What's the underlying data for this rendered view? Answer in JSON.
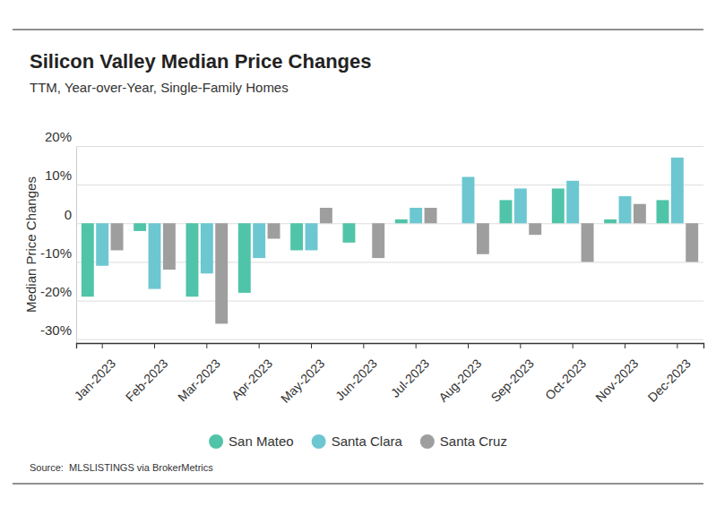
{
  "chart_data": {
    "type": "bar",
    "title": "Silicon Valley Median Price Changes",
    "subtitle": "TTM, Year-over-Year, Single-Family Homes",
    "ylabel": "Median Price Changes",
    "source": "Source:  MLSLISTINGS via BrokerMetrics",
    "categories": [
      "Jan-2023",
      "Feb-2023",
      "Mar-2023",
      "Apr-2023",
      "May-2023",
      "Jun-2023",
      "Jul-2023",
      "Aug-2023",
      "Sep-2023",
      "Oct-2023",
      "Nov-2023",
      "Dec-2023"
    ],
    "series": [
      {
        "name": "San Mateo",
        "color": "#50c4a8",
        "values": [
          -19,
          -2,
          -19,
          -18,
          -7,
          -5,
          1,
          0,
          6,
          9,
          1,
          6
        ]
      },
      {
        "name": "Santa Clara",
        "color": "#6cc7d1",
        "values": [
          -11,
          -17,
          -13,
          -9,
          -7,
          0,
          4,
          12,
          9,
          11,
          7,
          17
        ]
      },
      {
        "name": "Santa Cruz",
        "color": "#9e9e9e",
        "values": [
          -7,
          -12,
          -26,
          -4,
          4,
          -9,
          4,
          -8,
          -3,
          -10,
          5,
          -10
        ]
      }
    ],
    "ylim": [
      -31,
      20
    ],
    "yticks": [
      {
        "value": 20,
        "label": "20%"
      },
      {
        "value": 10,
        "label": "10%"
      },
      0,
      {
        "value": -10,
        "label": "-10%"
      },
      {
        "value": -20,
        "label": "-20%"
      },
      {
        "value": -30,
        "label": "-30%"
      }
    ],
    "grid": true,
    "legend": "bottom"
  }
}
